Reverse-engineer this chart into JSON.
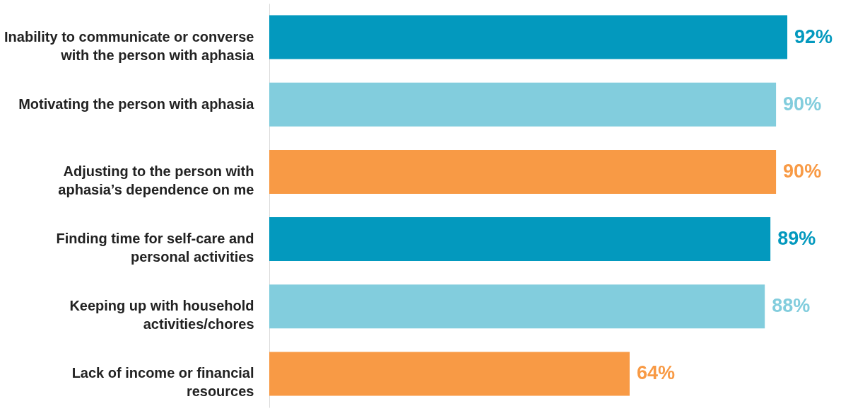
{
  "chart_data": {
    "type": "bar",
    "orientation": "horizontal",
    "data_labels": true,
    "categories": [
      "Inability to communicate or converse with the person with aphasia",
      "Motivating the person with aphasia",
      "Adjusting to the person with aphasia’s dependence on me",
      "Finding time for self-care and personal activities",
      "Keeping up with household activities/chores",
      "Lack of income or financial resources"
    ],
    "values": [
      92,
      90,
      90,
      89,
      88,
      64
    ],
    "colors": [
      "#0399be",
      "#82cddd",
      "#f89a45",
      "#0399be",
      "#82cddd",
      "#f89a45"
    ],
    "value_labels": [
      "92%",
      "90%",
      "90%",
      "89%",
      "88%",
      "64%"
    ]
  }
}
